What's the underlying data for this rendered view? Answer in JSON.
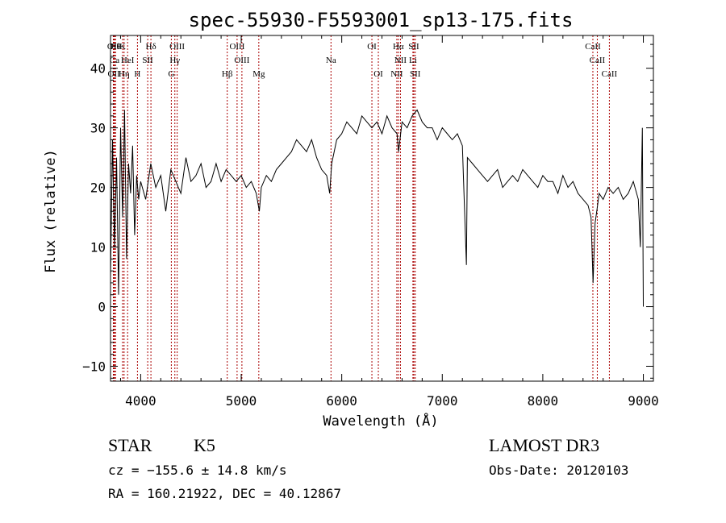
{
  "chart_data": {
    "type": "line",
    "title": "spec-55930-F5593001_sp13-175.fits",
    "xlabel": "Wavelength (Å)",
    "ylabel": "Flux (relative)",
    "xlim": [
      3700,
      9100
    ],
    "ylim": [
      -12.5,
      45.5
    ],
    "x_ticks": [
      4000,
      5000,
      6000,
      7000,
      8000,
      9000
    ],
    "y_ticks": [
      -10,
      0,
      10,
      20,
      30,
      40
    ],
    "grid": false,
    "line_color": "#000000",
    "marker_color": "#aa0000",
    "series": [
      {
        "x": [
          3700,
          3720,
          3740,
          3760,
          3780,
          3800,
          3820,
          3840,
          3860,
          3880,
          3900,
          3920,
          3940,
          3960,
          3980,
          4000,
          4050,
          4100,
          4150,
          4200,
          4250,
          4300,
          4350,
          4400,
          4450,
          4500,
          4550,
          4600,
          4650,
          4700,
          4750,
          4800,
          4850,
          4900,
          4950,
          5000,
          5050,
          5100,
          5150,
          5180,
          5200,
          5250,
          5300,
          5350,
          5400,
          5450,
          5500,
          5550,
          5600,
          5650,
          5700,
          5750,
          5800,
          5850,
          5880,
          5900,
          5950,
          6000,
          6050,
          6100,
          6150,
          6200,
          6250,
          6300,
          6350,
          6400,
          6450,
          6500,
          6550,
          6565,
          6600,
          6650,
          6700,
          6750,
          6800,
          6850,
          6900,
          6950,
          7000,
          7050,
          7100,
          7150,
          7200,
          7240,
          7250,
          7300,
          7350,
          7400,
          7450,
          7500,
          7550,
          7600,
          7650,
          7700,
          7750,
          7800,
          7850,
          7900,
          7950,
          8000,
          8050,
          8100,
          8150,
          8200,
          8250,
          8300,
          8350,
          8400,
          8450,
          8480,
          8500,
          8520,
          8545,
          8560,
          8600,
          8650,
          8700,
          8750,
          8800,
          8850,
          8900,
          8950,
          8970,
          8990,
          9000
        ],
        "y": [
          5,
          28,
          10,
          25,
          2,
          30,
          15,
          33,
          8,
          24,
          19,
          27,
          12,
          22,
          18,
          21,
          18,
          24,
          20,
          22,
          16,
          23,
          21,
          19,
          25,
          21,
          22,
          24,
          20,
          21,
          24,
          21,
          23,
          22,
          21,
          22,
          20,
          21,
          19,
          16,
          20,
          22,
          21,
          23,
          24,
          25,
          26,
          28,
          27,
          26,
          28,
          25,
          23,
          22,
          19,
          24,
          28,
          29,
          31,
          30,
          29,
          32,
          31,
          30,
          31,
          29,
          32,
          30,
          29,
          26,
          31,
          30,
          32,
          33,
          31,
          30,
          30,
          28,
          30,
          29,
          28,
          29,
          27,
          7,
          25,
          24,
          23,
          22,
          21,
          22,
          23,
          20,
          21,
          22,
          21,
          23,
          22,
          21,
          20,
          22,
          21,
          21,
          19,
          22,
          20,
          21,
          19,
          18,
          17,
          15,
          4,
          14,
          17,
          19,
          18,
          20,
          19,
          20,
          18,
          19,
          21,
          18,
          10,
          30,
          0
        ]
      }
    ],
    "line_markers": [
      {
        "wavelength": 3750,
        "label": "Hθ",
        "row": 0
      },
      {
        "wavelength": 3728,
        "label": "OII",
        "row": 0
      },
      {
        "wavelength": 3820,
        "label": "K",
        "row": 0
      },
      {
        "wavelength": 4102,
        "label": "Hδ",
        "row": 0
      },
      {
        "wavelength": 4363,
        "label": "OIII",
        "row": 0
      },
      {
        "wavelength": 4959,
        "label": "OIII",
        "row": 0
      },
      {
        "wavelength": 6300,
        "label": "OI",
        "row": 0
      },
      {
        "wavelength": 6563,
        "label": "Hα",
        "row": 0
      },
      {
        "wavelength": 6717,
        "label": "SII",
        "row": 0
      },
      {
        "wavelength": 8498,
        "label": "CaII",
        "row": 0
      },
      {
        "wavelength": 3740,
        "label": "Ca",
        "row": 1
      },
      {
        "wavelength": 3870,
        "label": "HeI",
        "row": 1
      },
      {
        "wavelength": 4070,
        "label": "SII",
        "row": 1
      },
      {
        "wavelength": 4340,
        "label": "Hγ",
        "row": 1
      },
      {
        "wavelength": 5007,
        "label": "OIII",
        "row": 1
      },
      {
        "wavelength": 5893,
        "label": "Na",
        "row": 1
      },
      {
        "wavelength": 6584,
        "label": "NII",
        "row": 1
      },
      {
        "wavelength": 6708,
        "label": "Li",
        "row": 1
      },
      {
        "wavelength": 8542,
        "label": "CaII",
        "row": 1
      },
      {
        "wavelength": 3733,
        "label": "OII",
        "row": 2
      },
      {
        "wavelength": 3835,
        "label": "Hη",
        "row": 2
      },
      {
        "wavelength": 3968,
        "label": "H",
        "row": 2
      },
      {
        "wavelength": 4305,
        "label": "G",
        "row": 2
      },
      {
        "wavelength": 4861,
        "label": "Hβ",
        "row": 2
      },
      {
        "wavelength": 5175,
        "label": "Mg",
        "row": 2
      },
      {
        "wavelength": 6364,
        "label": "OI",
        "row": 2
      },
      {
        "wavelength": 6548,
        "label": "NII",
        "row": 2
      },
      {
        "wavelength": 6731,
        "label": "SII",
        "row": 2
      },
      {
        "wavelength": 8662,
        "label": "CaII",
        "row": 2
      }
    ]
  },
  "info": {
    "object_class": "STAR",
    "subclass": "K5",
    "survey": "LAMOST DR3",
    "redshift": "cz = −155.6 ± 14.8 km/s",
    "obs_date": "Obs-Date: 20120103",
    "coordinates": "RA = 160.21922, DEC =  40.12867"
  }
}
